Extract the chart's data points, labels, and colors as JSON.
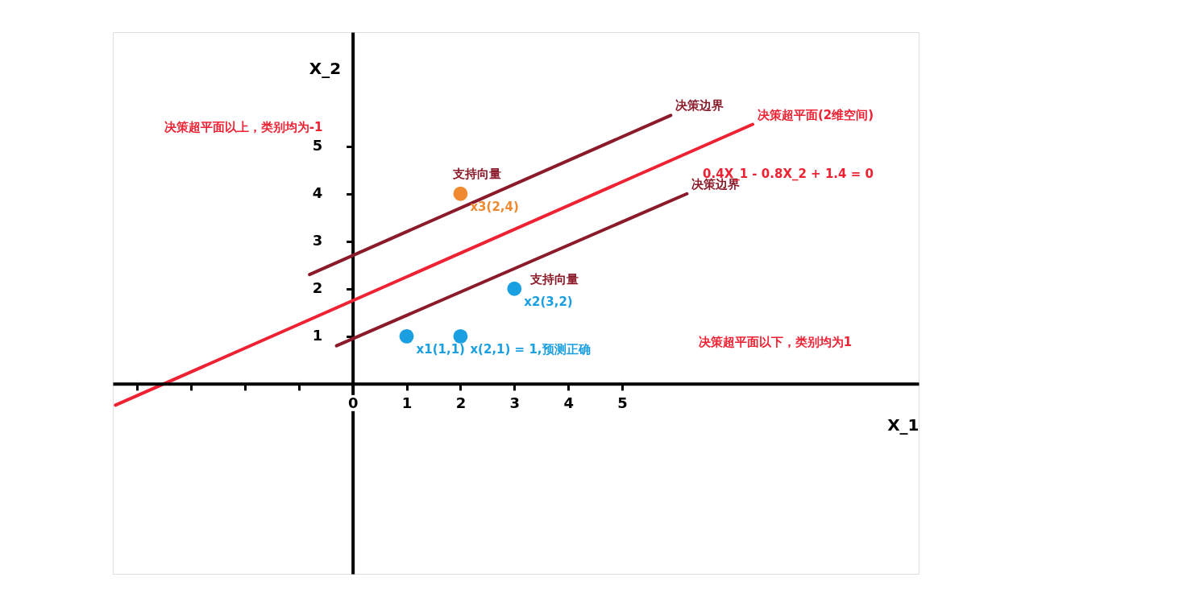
{
  "chart_data": {
    "type": "scatter",
    "xlabel": "X_1",
    "ylabel": "X_2",
    "xlim": [
      -4.45,
      10.5
    ],
    "ylim": [
      -4.0,
      7.4
    ],
    "xticks": [
      {
        "value": -4,
        "label": null
      },
      {
        "value": -3,
        "label": null
      },
      {
        "value": -2,
        "label": null
      },
      {
        "value": -1,
        "label": null
      },
      0,
      1,
      2,
      3,
      4,
      5
    ],
    "yticks": [
      1,
      2,
      3,
      4,
      5
    ],
    "grid": false,
    "series": [
      {
        "name": "决策边界",
        "type": "line",
        "color": "#8b1a2a",
        "x": [
          -0.8,
          5.9
        ],
        "values": [
          2.3,
          5.65
        ]
      },
      {
        "name": "决策超平面(2维空间)",
        "type": "line",
        "color": "#ee2233",
        "x": [
          -4.4,
          7.42
        ],
        "values": [
          -0.45,
          5.46
        ]
      },
      {
        "name": "决策边界",
        "type": "line",
        "color": "#8b1a2a",
        "x": [
          -0.3,
          6.2
        ],
        "values": [
          0.8,
          4.0
        ]
      },
      {
        "color": "#1a9fe0",
        "x": [
          1,
          2,
          3
        ],
        "values": [
          1,
          1,
          2
        ],
        "value_labels": [
          "x1(1,1)",
          "x(2,1) = 1,预测正确",
          "x2(3,2)"
        ]
      },
      {
        "color": "#f08a30",
        "x": [
          2
        ],
        "values": [
          4
        ],
        "value_labels": [
          "x3(2,4)"
        ]
      }
    ],
    "annotations": [
      "决策超平面以上，类别均为-1",
      "0.4X_1 - 0.8X_2 + 1.4 = 0",
      "支持向量",
      "支持向量",
      "决策超平面以下，类别均为1"
    ]
  }
}
